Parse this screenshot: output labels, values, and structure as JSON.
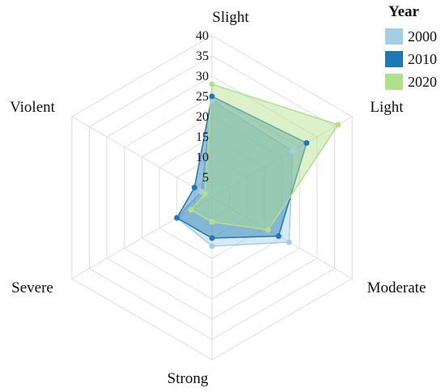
{
  "chart_data": {
    "type": "radar",
    "axes": [
      "Slight",
      "Light",
      "Moderate",
      "Strong",
      "Severe",
      "Violent"
    ],
    "ticks": [
      "5",
      "10",
      "15",
      "20",
      "25",
      "30",
      "35",
      "40"
    ],
    "rmax": 40,
    "grid": true,
    "legend": {
      "title": "Year",
      "placement": "top-right"
    },
    "series": [
      {
        "name": "2000",
        "color": "#a6cee3",
        "values": [
          24,
          23,
          22,
          12,
          10,
          3
        ]
      },
      {
        "name": "2010",
        "color": "#1f78b4",
        "values": [
          25,
          27,
          19,
          10,
          10,
          5
        ]
      },
      {
        "name": "2020",
        "color": "#b2df8a",
        "values": [
          28,
          36,
          16,
          6,
          6,
          2
        ]
      }
    ]
  }
}
